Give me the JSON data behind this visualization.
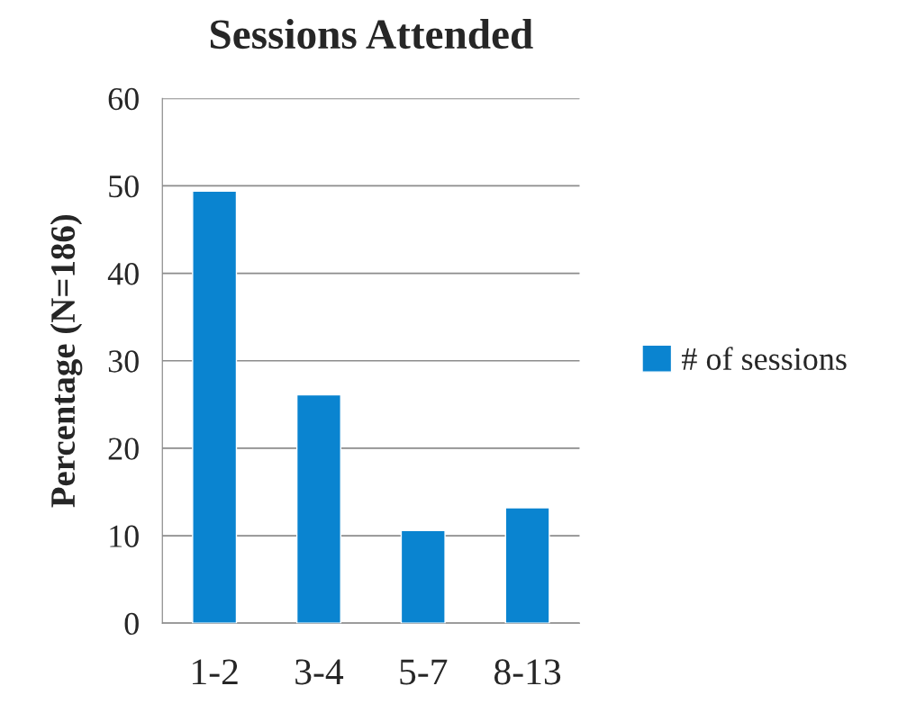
{
  "chart_data": {
    "type": "bar",
    "title": "Sessions Attended",
    "ylabel": "Percentage (N=186)",
    "categories": [
      "1-2",
      "3-4",
      "5-7",
      "8-13"
    ],
    "series": [
      {
        "name": "# of sessions",
        "color": "#0a84d0",
        "values": [
          49.4,
          26.1,
          10.6,
          13.2
        ]
      }
    ],
    "ylim": [
      0,
      60
    ],
    "yticks": [
      0,
      10,
      20,
      30,
      40,
      50,
      60
    ],
    "grid": "y",
    "legend": "right"
  }
}
